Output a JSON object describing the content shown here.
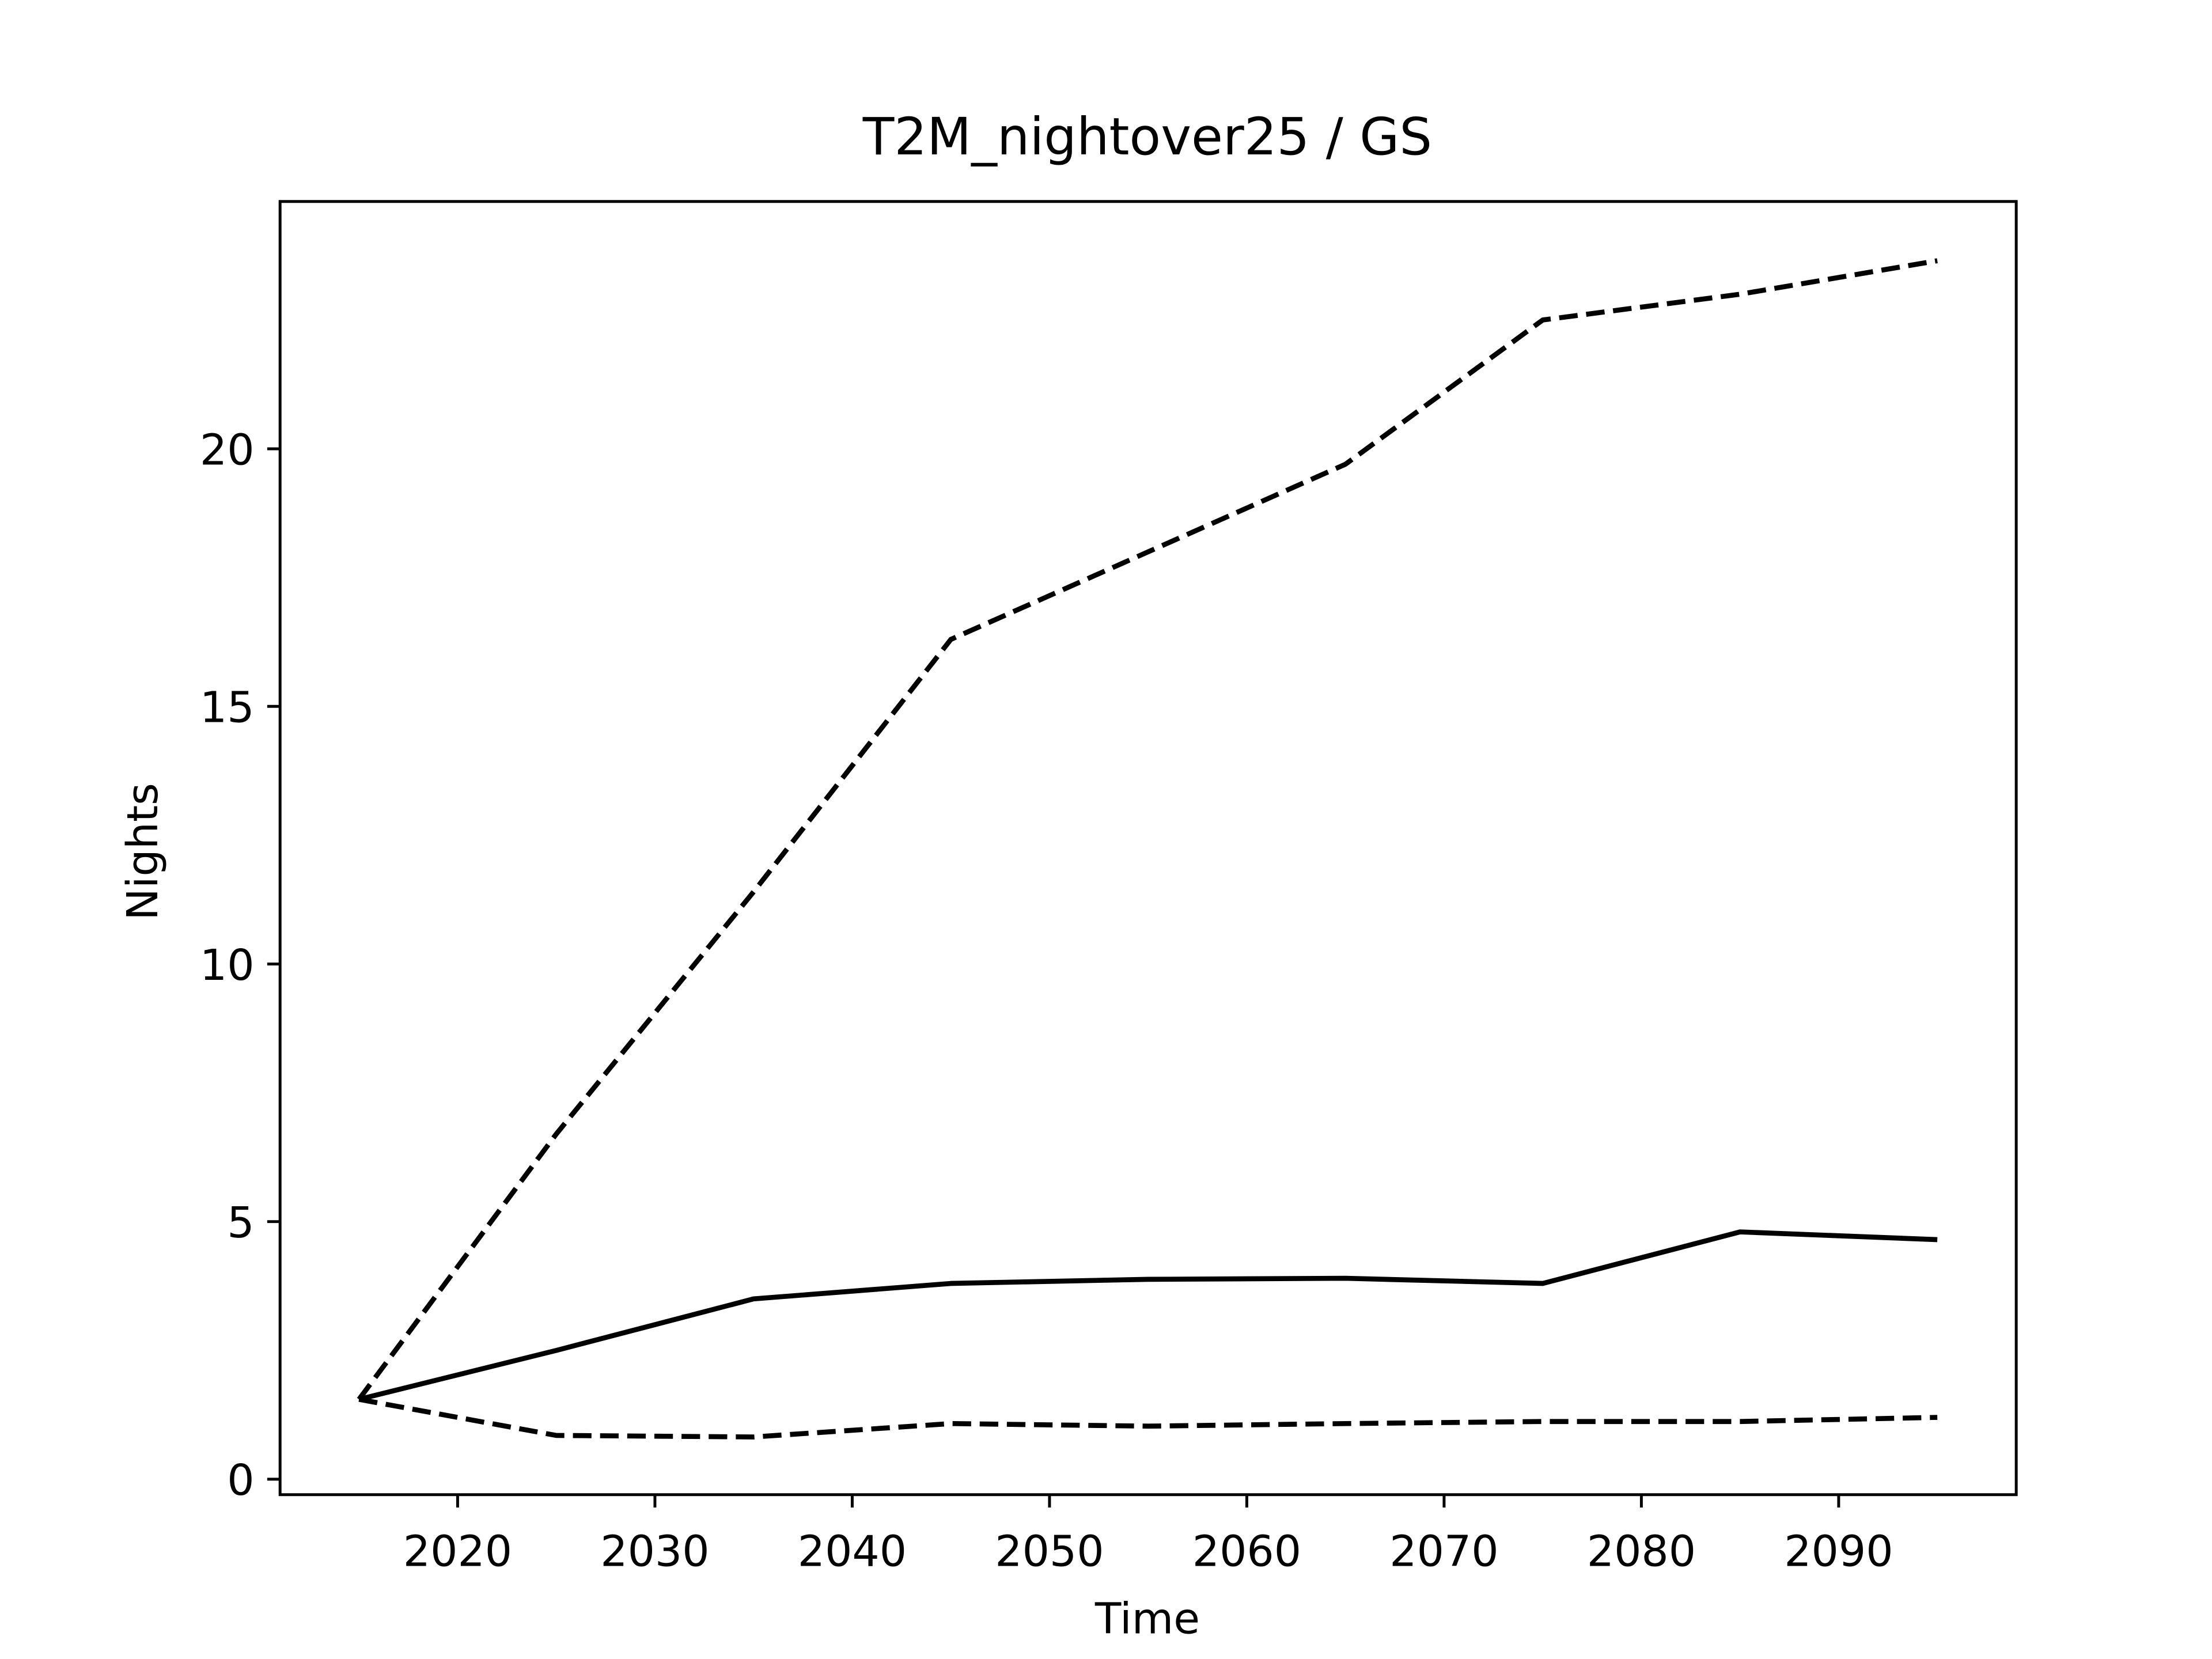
{
  "chart_data": {
    "type": "line",
    "title": "T2M_nightover25 / GS",
    "x_label": "Time",
    "y_label": "Nights",
    "x": [
      2015,
      2025,
      2035,
      2045,
      2055,
      2065,
      2075,
      2085,
      2095
    ],
    "series": [
      {
        "color": "#000000",
        "dashed": false,
        "values": [
          1.55,
          2.5,
          3.5,
          3.8,
          3.88,
          3.9,
          3.8,
          4.8,
          4.65
        ]
      },
      {
        "color": "#000000",
        "dashed": true,
        "values": [
          1.55,
          6.7,
          11.4,
          16.3,
          18.0,
          19.7,
          22.5,
          23.0,
          23.65
        ]
      },
      {
        "color": "#000000",
        "dashed": true,
        "values": [
          1.55,
          0.85,
          0.82,
          1.08,
          1.03,
          1.08,
          1.12,
          1.12,
          1.2
        ]
      }
    ],
    "xlim": [
      2011,
      2099
    ],
    "ylim": [
      -0.3,
      24.8
    ],
    "xticks": [
      2020,
      2030,
      2040,
      2050,
      2060,
      2070,
      2080,
      2090
    ],
    "yticks": [
      0,
      5,
      10,
      15,
      20
    ],
    "grid": false
  }
}
